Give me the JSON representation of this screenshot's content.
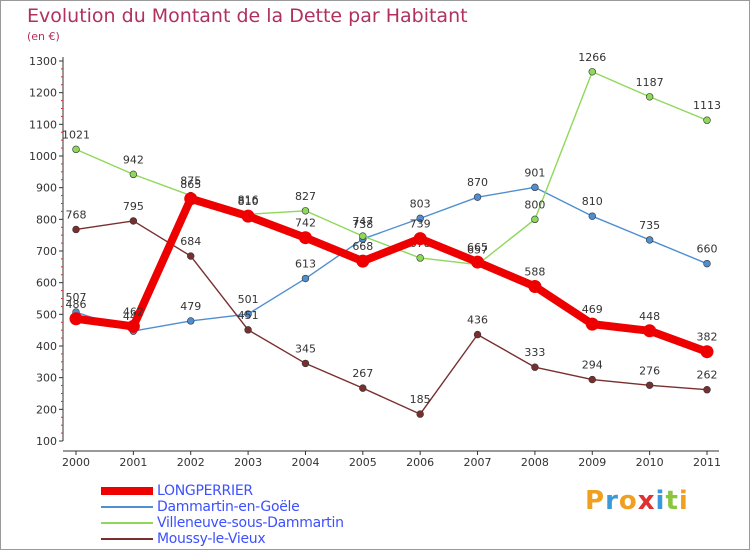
{
  "title": "Evolution du Montant de la Dette par Habitant",
  "subtitle": "(en €)",
  "logo": {
    "letters": [
      "P",
      "r",
      "o",
      "x",
      "i",
      "t",
      "i"
    ],
    "colors": [
      "#f0a020",
      "#3a9ad9",
      "#f0a020",
      "#e03030",
      "#3a9ad9",
      "#8cc63f",
      "#f0a020"
    ]
  },
  "chart_data": {
    "type": "line",
    "categories": [
      "2000",
      "2001",
      "2002",
      "2003",
      "2004",
      "2005",
      "2006",
      "2007",
      "2008",
      "2009",
      "2010",
      "2011"
    ],
    "ylim": [
      100,
      1300
    ],
    "yticks": [
      100,
      200,
      300,
      400,
      500,
      600,
      700,
      800,
      900,
      1000,
      1100,
      1200,
      1300
    ],
    "grid": false,
    "legend_position": "bottom-left",
    "series": [
      {
        "name": "Dammartin-en-Goële",
        "color": "#4f8fd0",
        "values": [
          507,
          447,
          479,
          501,
          613,
          738,
          803,
          870,
          901,
          810,
          735,
          660
        ]
      },
      {
        "name": "Villeneuve-sous-Dammartin",
        "color": "#8ed85a",
        "values": [
          1021,
          942,
          875,
          816,
          827,
          747,
          678,
          657,
          800,
          1266,
          1187,
          1113
        ]
      },
      {
        "name": "Moussy-le-Vieux",
        "color": "#7a2f2f",
        "values": [
          768,
          795,
          684,
          451,
          345,
          267,
          185,
          436,
          333,
          294,
          276,
          262
        ]
      },
      {
        "name": "LONGPERRIER",
        "color": "#ee0000",
        "values": [
          486,
          462,
          865,
          810,
          742,
          668,
          739,
          665,
          588,
          469,
          448,
          382
        ]
      }
    ]
  }
}
